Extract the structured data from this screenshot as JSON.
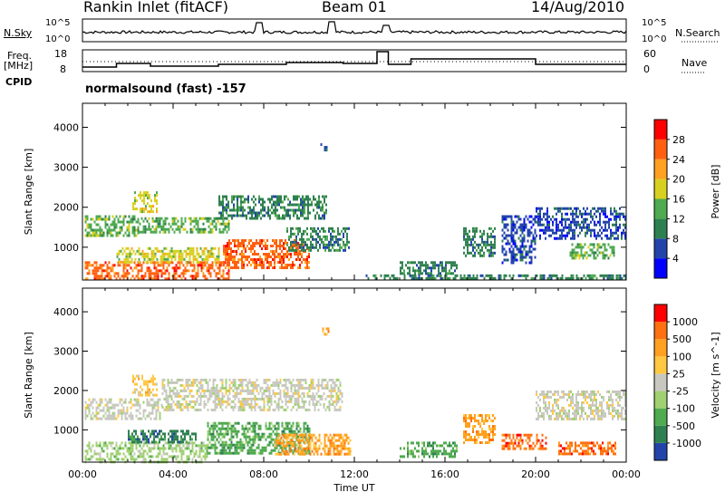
{
  "header": {
    "station": "Rankin Inlet (fitACF)",
    "beam": "Beam 01",
    "date": "14/Aug/2010"
  },
  "noise_panel": {
    "left_label": "N.Sky",
    "right_label": "N.Search",
    "left_ticks": [
      "10^5",
      "10^0"
    ],
    "right_ticks": [
      "10^5",
      "10^0"
    ]
  },
  "freq_panel": {
    "left_label_line1": "Freq.",
    "left_label_line2": "[MHz]",
    "right_label": "Nave",
    "left_ticks": [
      "18",
      "8"
    ],
    "right_ticks": [
      "60",
      "0"
    ]
  },
  "cpid": {
    "label": "CPID",
    "text": "normalsound (fast) -157"
  },
  "colors": {
    "power_scale": [
      "#0000ff",
      "#2244aa",
      "#2f8050",
      "#4faa50",
      "#d8d020",
      "#ffa020",
      "#ff6010",
      "#ff0000"
    ],
    "velocity_scale": [
      "#2244aa",
      "#2f8050",
      "#4faa50",
      "#a0d070",
      "#c8c8c0",
      "#ffc840",
      "#ffa020",
      "#ff7010",
      "#ff0000"
    ]
  },
  "chart_data": [
    {
      "type": "heatmap",
      "name": "Power",
      "ylabel": "Slant Range [km]",
      "xlabel": "Time UT",
      "x_ticks": [
        "00:00",
        "04:00",
        "08:00",
        "12:00",
        "16:00",
        "20:00",
        "00:00"
      ],
      "y_ticks": [
        "1000",
        "2000",
        "3000",
        "4000"
      ],
      "ylim": [
        180,
        4600
      ],
      "xlim_hours": [
        0,
        24
      ],
      "colorbar_label": "Power [dB]",
      "colorbar_ticks": [
        "4",
        "8",
        "12",
        "16",
        "20",
        "24",
        "28"
      ],
      "blobs": [
        {
          "t0": 0.1,
          "t1": 6.5,
          "r0": 200,
          "r1": 650,
          "v": 26
        },
        {
          "t0": 6.2,
          "t1": 10.0,
          "r0": 500,
          "r1": 1200,
          "v": 27
        },
        {
          "t0": 0.1,
          "t1": 2.5,
          "r0": 1300,
          "r1": 1800,
          "v": 14
        },
        {
          "t0": 2.5,
          "t1": 6.5,
          "r0": 1400,
          "r1": 1750,
          "v": 12
        },
        {
          "t0": 2.2,
          "t1": 3.3,
          "r0": 1900,
          "r1": 2400,
          "v": 18
        },
        {
          "t0": 6.0,
          "t1": 10.8,
          "r0": 1700,
          "r1": 2300,
          "v": 8
        },
        {
          "t0": 1.5,
          "t1": 6.0,
          "r0": 650,
          "r1": 1000,
          "v": 16
        },
        {
          "t0": 9.0,
          "t1": 11.8,
          "r0": 900,
          "r1": 1500,
          "v": 10
        },
        {
          "t0": 10.5,
          "t1": 10.9,
          "r0": 3400,
          "r1": 3600,
          "v": 6
        },
        {
          "t0": 14.0,
          "t1": 16.5,
          "r0": 350,
          "r1": 650,
          "v": 10
        },
        {
          "t0": 16.8,
          "t1": 18.2,
          "r0": 800,
          "r1": 1500,
          "v": 8
        },
        {
          "t0": 18.5,
          "t1": 20.0,
          "r0": 600,
          "r1": 1800,
          "v": 6
        },
        {
          "t0": 20.0,
          "t1": 24.0,
          "r0": 1200,
          "r1": 2000,
          "v": 7
        },
        {
          "t0": 21.5,
          "t1": 23.5,
          "r0": 700,
          "r1": 1100,
          "v": 12
        },
        {
          "t0": 12.5,
          "t1": 24.0,
          "r0": 200,
          "r1": 320,
          "v": 8
        }
      ]
    },
    {
      "type": "heatmap",
      "name": "Velocity",
      "ylabel": "Slant Range [km]",
      "xlabel": "Time UT",
      "x_ticks": [
        "00:00",
        "04:00",
        "08:00",
        "12:00",
        "16:00",
        "20:00",
        "00:00"
      ],
      "y_ticks": [
        "1000",
        "2000",
        "3000",
        "4000"
      ],
      "ylim": [
        180,
        4600
      ],
      "xlim_hours": [
        0,
        24
      ],
      "colorbar_label": "Velocity [m s^-1]",
      "colorbar_ticks": [
        "1000",
        "500",
        "100",
        "25",
        "-25",
        "-100",
        "-500",
        "-1000"
      ],
      "blobs": [
        {
          "t0": 0.1,
          "t1": 5.5,
          "r0": 200,
          "r1": 700,
          "v": 3
        },
        {
          "t0": 5.5,
          "t1": 10.0,
          "r0": 400,
          "r1": 1200,
          "v": 2
        },
        {
          "t0": 0.1,
          "t1": 3.5,
          "r0": 1300,
          "r1": 1800,
          "v": 4
        },
        {
          "t0": 3.5,
          "t1": 11.5,
          "r0": 1500,
          "r1": 2300,
          "v": 4
        },
        {
          "t0": 2.2,
          "t1": 3.3,
          "r0": 1900,
          "r1": 2400,
          "v": 5
        },
        {
          "t0": 8.5,
          "t1": 11.8,
          "r0": 400,
          "r1": 900,
          "v": 6
        },
        {
          "t0": 2.0,
          "t1": 5.0,
          "r0": 700,
          "r1": 1000,
          "v": 1
        },
        {
          "t0": 10.5,
          "t1": 10.9,
          "r0": 3400,
          "r1": 3600,
          "v": 6
        },
        {
          "t0": 14.0,
          "t1": 16.5,
          "r0": 350,
          "r1": 700,
          "v": 2
        },
        {
          "t0": 16.8,
          "t1": 18.2,
          "r0": 700,
          "r1": 1400,
          "v": 6
        },
        {
          "t0": 18.5,
          "t1": 20.5,
          "r0": 500,
          "r1": 900,
          "v": 7
        },
        {
          "t0": 20.0,
          "t1": 24.0,
          "r0": 1300,
          "r1": 2000,
          "v": 4
        },
        {
          "t0": 21.0,
          "t1": 23.5,
          "r0": 400,
          "r1": 700,
          "v": 7
        }
      ]
    }
  ]
}
